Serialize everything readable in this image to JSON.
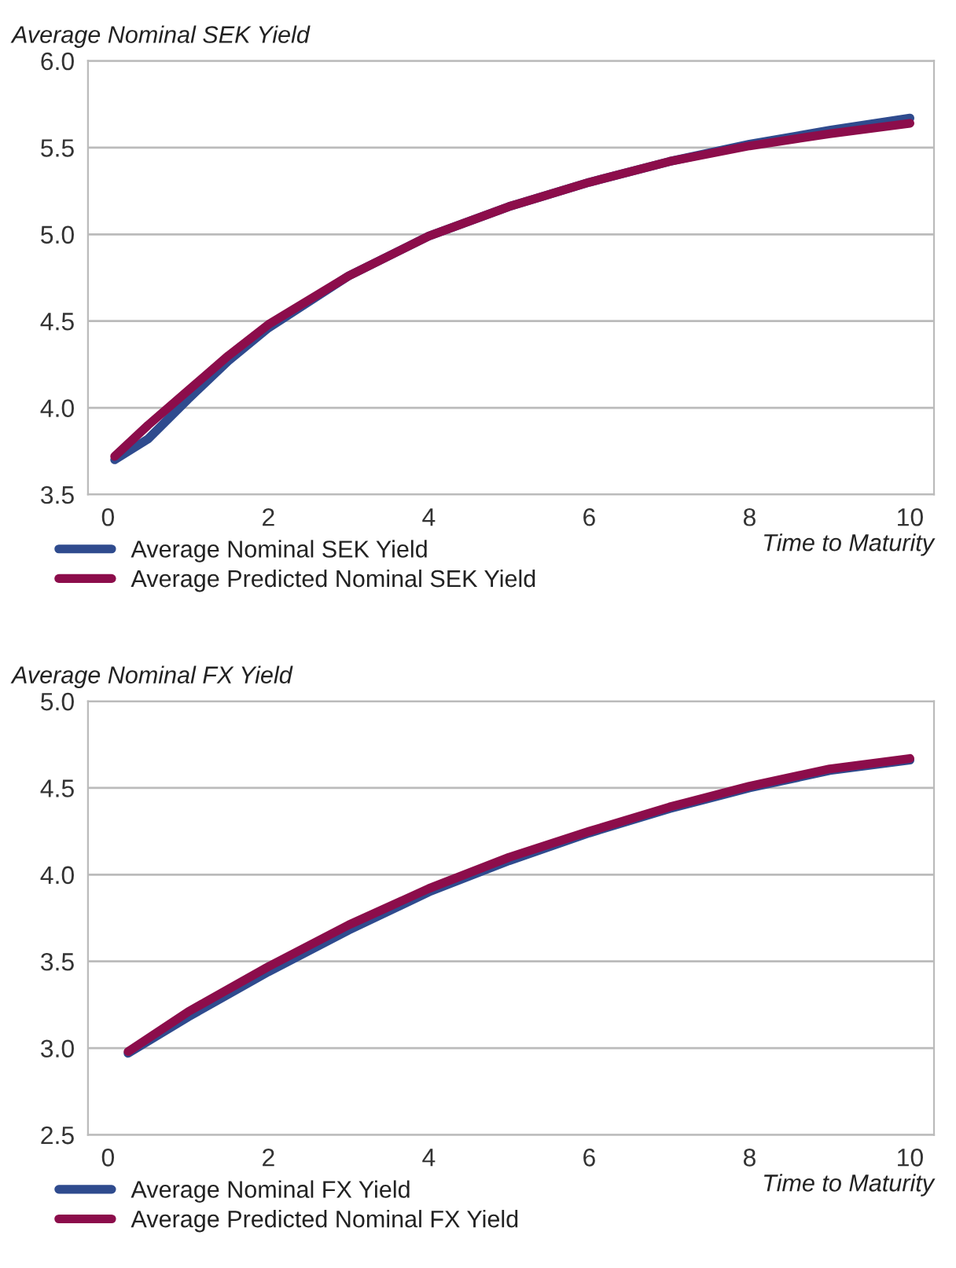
{
  "chart_data": [
    {
      "type": "line",
      "ylabel": "Average Nominal SEK Yield",
      "xlabel": "Time to Maturity",
      "xlim": [
        -0.25,
        10.3
      ],
      "xticks": [
        0,
        2,
        4,
        6,
        8,
        10
      ],
      "ylim": [
        3.5,
        6.0
      ],
      "yticks": [
        {
          "value": 3.5,
          "label": "3.5"
        },
        {
          "value": 4.0,
          "label": "4.0"
        },
        {
          "value": 4.5,
          "label": "4.5"
        },
        {
          "value": 5.0,
          "label": "5.0"
        },
        {
          "value": 5.5,
          "label": "5.5"
        },
        {
          "value": 6.0,
          "label": "6.0"
        }
      ],
      "grid": "y",
      "legend": "bottom left",
      "line_style": "solid",
      "series": [
        {
          "name": "Average Nominal SEK Yield",
          "color": "#2f4b8e",
          "x": [
            0.083,
            0.5,
            1,
            1.5,
            2,
            3,
            4,
            5,
            6,
            7,
            8,
            9,
            10
          ],
          "values": [
            3.7,
            3.82,
            4.05,
            4.27,
            4.46,
            4.76,
            4.99,
            5.16,
            5.3,
            5.42,
            5.52,
            5.6,
            5.67
          ]
        },
        {
          "name": "Average Predicted Nominal SEK Yield",
          "color": "#8c0d4b",
          "x": [
            0.083,
            0.5,
            1,
            1.5,
            2,
            3,
            4,
            5,
            6,
            7,
            8,
            9,
            10
          ],
          "values": [
            3.72,
            3.9,
            4.1,
            4.3,
            4.48,
            4.76,
            4.99,
            5.16,
            5.3,
            5.42,
            5.51,
            5.58,
            5.64
          ]
        }
      ]
    },
    {
      "type": "line",
      "ylabel": "Average Nominal FX Yield",
      "xlabel": "Time to Maturity",
      "xlim": [
        -0.25,
        10.3
      ],
      "xticks": [
        0,
        2,
        4,
        6,
        8,
        10
      ],
      "ylim": [
        2.5,
        5.0
      ],
      "yticks": [
        {
          "value": 2.5,
          "label": "2.5"
        },
        {
          "value": 3.0,
          "label": "3.0"
        },
        {
          "value": 3.5,
          "label": "3.5"
        },
        {
          "value": 4.0,
          "label": "4.0"
        },
        {
          "value": 4.5,
          "label": "4.5"
        },
        {
          "value": 5.0,
          "label": "5.0"
        }
      ],
      "grid": "y",
      "legend": "bottom left",
      "line_style": "solid",
      "series": [
        {
          "name": "Average Nominal FX Yield",
          "color": "#2f4b8e",
          "x": [
            0.25,
            1,
            2,
            3,
            4,
            5,
            6,
            7,
            8,
            9,
            10
          ],
          "values": [
            2.97,
            3.18,
            3.44,
            3.68,
            3.9,
            4.08,
            4.24,
            4.38,
            4.5,
            4.6,
            4.66
          ]
        },
        {
          "name": "Average Predicted Nominal FX Yield",
          "color": "#8c0d4b",
          "x": [
            0.25,
            1,
            2,
            3,
            4,
            5,
            6,
            7,
            8,
            9,
            10
          ],
          "values": [
            2.98,
            3.21,
            3.47,
            3.71,
            3.92,
            4.1,
            4.25,
            4.39,
            4.51,
            4.61,
            4.67
          ]
        }
      ]
    }
  ]
}
